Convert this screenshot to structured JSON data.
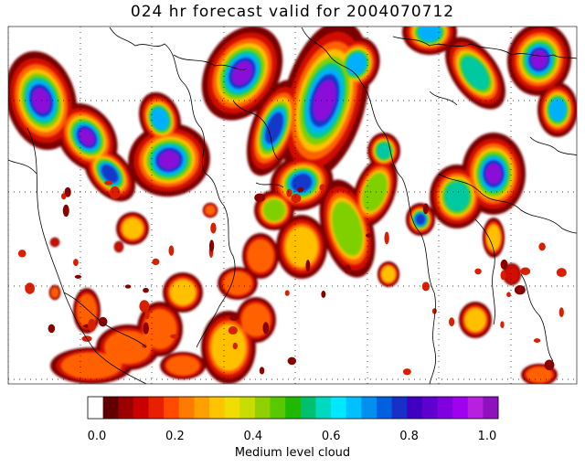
{
  "title": "024 hr forecast valid for 2004070712",
  "field_label": "Medium level cloud",
  "colorbar": {
    "range": [
      0.0,
      1.0
    ],
    "ticks": [
      "0.0",
      "0.2",
      "0.4",
      "0.6",
      "0.8",
      "1.0"
    ],
    "colors": [
      "#ffffff",
      "#600000",
      "#9a0000",
      "#c80000",
      "#e82000",
      "#ff4a00",
      "#ff7a00",
      "#ffa000",
      "#ffc400",
      "#f0dc00",
      "#c8dc00",
      "#90d000",
      "#58c800",
      "#20b800",
      "#00c070",
      "#00d8c0",
      "#00e8ff",
      "#00c0ff",
      "#0090f0",
      "#0060e0",
      "#1830c8",
      "#4000c0",
      "#6000d0",
      "#8000e0",
      "#a000f0",
      "#b820e0",
      "#9010c0"
    ]
  },
  "map": {
    "coastline_color": "#000000",
    "gridline_style": "dotted"
  }
}
